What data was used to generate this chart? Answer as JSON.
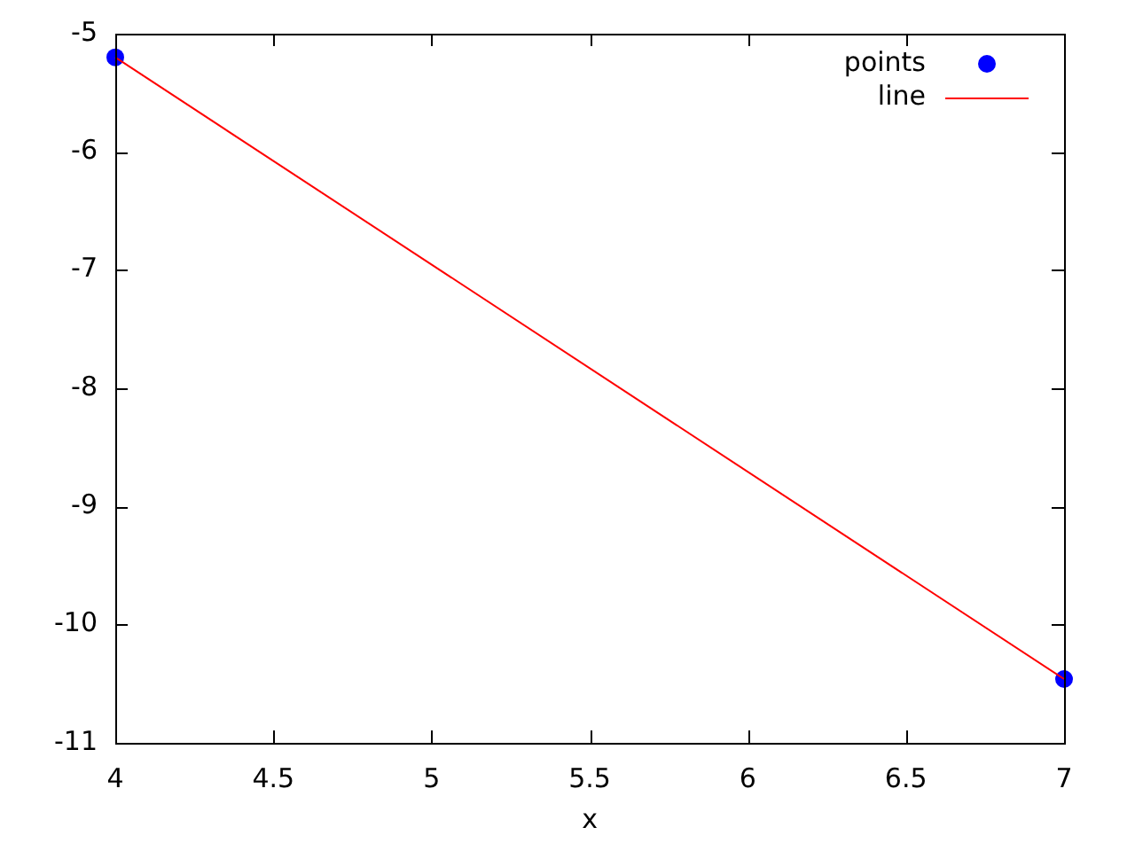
{
  "chart_data": {
    "type": "line",
    "xlabel": "x",
    "x": [
      4,
      7
    ],
    "xlim": [
      4,
      7
    ],
    "xticks": [
      4,
      4.5,
      5,
      5.5,
      6,
      6.5,
      7
    ],
    "ylim": [
      -11,
      -5
    ],
    "yticks": [
      -11,
      -10,
      -9,
      -8,
      -7,
      -6,
      -5
    ],
    "legend": "top right",
    "series": [
      {
        "name": "points",
        "type": "scatter",
        "color": "#0000ff",
        "marker": "circle",
        "values": [
          -5.2,
          -10.46
        ]
      },
      {
        "name": "line",
        "color": "#ff0000",
        "marker": "none",
        "line_style": "solid",
        "values": [
          -5.2,
          -10.46
        ]
      }
    ]
  }
}
